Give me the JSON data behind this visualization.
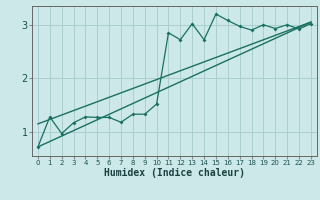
{
  "xlabel": "Humidex (Indice chaleur)",
  "bg_color": "#cce8e8",
  "grid_color": "#aacece",
  "line_color": "#1a7060",
  "xlim": [
    -0.5,
    23.5
  ],
  "ylim": [
    0.55,
    3.35
  ],
  "xticks": [
    0,
    1,
    2,
    3,
    4,
    5,
    6,
    7,
    8,
    9,
    10,
    11,
    12,
    13,
    14,
    15,
    16,
    17,
    18,
    19,
    20,
    21,
    22,
    23
  ],
  "yticks": [
    1,
    2,
    3
  ],
  "data_x": [
    0,
    1,
    2,
    3,
    4,
    5,
    6,
    7,
    8,
    9,
    10,
    11,
    12,
    13,
    14,
    15,
    16,
    17,
    18,
    19,
    20,
    21,
    22,
    23
  ],
  "data_y": [
    0.72,
    1.28,
    0.97,
    1.17,
    1.28,
    1.27,
    1.27,
    1.18,
    1.33,
    1.33,
    1.52,
    2.85,
    2.72,
    3.02,
    2.72,
    3.2,
    3.08,
    2.97,
    2.9,
    3.0,
    2.93,
    3.0,
    2.92,
    3.02
  ],
  "reg1_start_x": 0,
  "reg1_start_y": 0.72,
  "reg1_end_x": 23,
  "reg1_end_y": 3.05,
  "reg2_start_x": 0,
  "reg2_start_y": 1.15,
  "reg2_end_x": 23,
  "reg2_end_y": 3.05,
  "xlabel_fontsize": 7,
  "tick_fontsize": 5,
  "ytick_fontsize": 7
}
